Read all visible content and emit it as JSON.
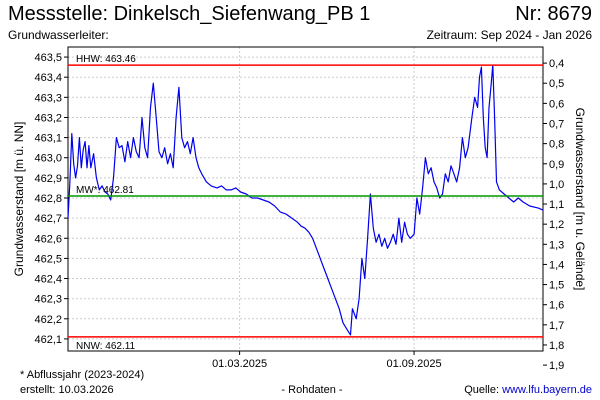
{
  "header": {
    "title": "Messstelle: Dinkelsch_Siefenwang_PB 1",
    "station_number": "Nr: 8679",
    "aquifer_label": "Grundwasserleiter:",
    "period": "Zeitraum: Sep 2024 - Jan 2026"
  },
  "footer": {
    "footnote": "* Abflussjahr (2023-2024)",
    "created": "erstellt:  10.03.2026",
    "rawdata": "- Rohdaten -",
    "source_prefix": "Quelle:",
    "source_link": "www.lfu.bayern.de"
  },
  "chart_data": {
    "type": "line",
    "ylabel": "Grundwasserstand [m ü. NN]",
    "ylabel_right": "Grundwasserstand [m u. Gelände]",
    "xlim": [
      "2024-09-01",
      "2026-01-15"
    ],
    "ylim": [
      462.04,
      463.55
    ],
    "y_ticks": [
      462.1,
      462.2,
      462.3,
      462.4,
      462.5,
      462.6,
      462.7,
      462.8,
      462.9,
      463.0,
      463.1,
      463.2,
      463.3,
      463.4,
      463.5
    ],
    "y_tick_labels": [
      "462,1",
      "462,2",
      "462,3",
      "462,4",
      "462,5",
      "462,6",
      "462,7",
      "462,8",
      "462,9",
      "463,0",
      "463,1",
      "463,2",
      "463,3",
      "463,4",
      "463,5"
    ],
    "right_ticks": [
      0.4,
      0.5,
      0.6,
      0.7,
      0.8,
      0.9,
      1.0,
      1.1,
      1.2,
      1.3,
      1.4,
      1.5,
      1.6,
      1.7,
      1.8,
      1.9
    ],
    "right_tick_labels": [
      "0,4",
      "0,5",
      "0,6",
      "0,7",
      "0,8",
      "0,9",
      "1,0",
      "1,1",
      "1,2",
      "1,3",
      "1,4",
      "1,5",
      "1,6",
      "1,7",
      "1,8",
      "1,9"
    ],
    "right_axis_reference": 463.87,
    "x_ticks": [
      {
        "date": "2025-03-01",
        "label": "01.03.2025"
      },
      {
        "date": "2025-09-01",
        "label": "01.09.2025"
      }
    ],
    "grid": true,
    "reference_lines": [
      {
        "label": "HHW: 463.46",
        "value": 463.46,
        "color": "#ff0000"
      },
      {
        "label": "MW*: 462.81",
        "value": 462.81,
        "color": "#009900"
      },
      {
        "label": "NNW: 462.11",
        "value": 462.11,
        "color": "#ff0000"
      }
    ],
    "series": [
      {
        "color": "#0000ee",
        "points": [
          [
            "2024-09-01",
            462.7
          ],
          [
            "2024-09-03",
            462.88
          ],
          [
            "2024-09-05",
            463.12
          ],
          [
            "2024-09-07",
            462.97
          ],
          [
            "2024-09-09",
            462.9
          ],
          [
            "2024-09-11",
            462.96
          ],
          [
            "2024-09-13",
            463.1
          ],
          [
            "2024-09-15",
            462.95
          ],
          [
            "2024-09-17",
            463.04
          ],
          [
            "2024-09-19",
            463.08
          ],
          [
            "2024-09-21",
            462.95
          ],
          [
            "2024-09-23",
            463.06
          ],
          [
            "2024-09-25",
            462.95
          ],
          [
            "2024-09-28",
            463.02
          ],
          [
            "2024-10-01",
            462.9
          ],
          [
            "2024-10-04",
            462.84
          ],
          [
            "2024-10-07",
            462.86
          ],
          [
            "2024-10-10",
            462.83
          ],
          [
            "2024-10-13",
            462.82
          ],
          [
            "2024-10-16",
            462.79
          ],
          [
            "2024-10-19",
            462.9
          ],
          [
            "2024-10-22",
            463.1
          ],
          [
            "2024-10-25",
            463.05
          ],
          [
            "2024-10-28",
            463.06
          ],
          [
            "2024-10-31",
            462.98
          ],
          [
            "2024-11-03",
            463.08
          ],
          [
            "2024-11-06",
            463.0
          ],
          [
            "2024-11-09",
            463.1
          ],
          [
            "2024-11-12",
            463.03
          ],
          [
            "2024-11-15",
            463.0
          ],
          [
            "2024-11-18",
            463.2
          ],
          [
            "2024-11-21",
            463.05
          ],
          [
            "2024-11-24",
            463.0
          ],
          [
            "2024-11-27",
            463.25
          ],
          [
            "2024-11-30",
            463.37
          ],
          [
            "2024-12-03",
            463.2
          ],
          [
            "2024-12-06",
            463.03
          ],
          [
            "2024-12-09",
            463.0
          ],
          [
            "2024-12-12",
            463.05
          ],
          [
            "2024-12-15",
            462.97
          ],
          [
            "2024-12-18",
            463.02
          ],
          [
            "2024-12-21",
            462.95
          ],
          [
            "2024-12-24",
            463.2
          ],
          [
            "2024-12-27",
            463.35
          ],
          [
            "2024-12-30",
            463.1
          ],
          [
            "2025-01-02",
            463.05
          ],
          [
            "2025-01-05",
            463.08
          ],
          [
            "2025-01-08",
            463.02
          ],
          [
            "2025-01-11",
            463.1
          ],
          [
            "2025-01-14",
            463.0
          ],
          [
            "2025-01-17",
            462.95
          ],
          [
            "2025-01-20",
            462.92
          ],
          [
            "2025-01-25",
            462.88
          ],
          [
            "2025-01-30",
            462.86
          ],
          [
            "2025-02-05",
            462.85
          ],
          [
            "2025-02-10",
            462.86
          ],
          [
            "2025-02-15",
            462.84
          ],
          [
            "2025-02-20",
            462.84
          ],
          [
            "2025-02-25",
            462.85
          ],
          [
            "2025-03-02",
            462.83
          ],
          [
            "2025-03-08",
            462.82
          ],
          [
            "2025-03-14",
            462.8
          ],
          [
            "2025-03-20",
            462.8
          ],
          [
            "2025-03-26",
            462.79
          ],
          [
            "2025-04-01",
            462.78
          ],
          [
            "2025-04-07",
            462.76
          ],
          [
            "2025-04-13",
            462.73
          ],
          [
            "2025-04-19",
            462.72
          ],
          [
            "2025-04-25",
            462.7
          ],
          [
            "2025-05-01",
            462.68
          ],
          [
            "2025-05-05",
            462.66
          ],
          [
            "2025-05-09",
            462.65
          ],
          [
            "2025-05-13",
            462.63
          ],
          [
            "2025-05-17",
            462.6
          ],
          [
            "2025-05-21",
            462.55
          ],
          [
            "2025-05-25",
            462.5
          ],
          [
            "2025-05-29",
            462.45
          ],
          [
            "2025-06-02",
            462.4
          ],
          [
            "2025-06-06",
            462.35
          ],
          [
            "2025-06-10",
            462.3
          ],
          [
            "2025-06-14",
            462.25
          ],
          [
            "2025-06-18",
            462.18
          ],
          [
            "2025-06-22",
            462.15
          ],
          [
            "2025-06-26",
            462.12
          ],
          [
            "2025-06-28",
            462.25
          ],
          [
            "2025-07-02",
            462.2
          ],
          [
            "2025-07-05",
            462.3
          ],
          [
            "2025-07-08",
            462.5
          ],
          [
            "2025-07-11",
            462.4
          ],
          [
            "2025-07-14",
            462.6
          ],
          [
            "2025-07-17",
            462.82
          ],
          [
            "2025-07-20",
            462.65
          ],
          [
            "2025-07-23",
            462.58
          ],
          [
            "2025-07-26",
            462.62
          ],
          [
            "2025-07-29",
            462.56
          ],
          [
            "2025-08-01",
            462.6
          ],
          [
            "2025-08-04",
            462.55
          ],
          [
            "2025-08-07",
            462.58
          ],
          [
            "2025-08-10",
            462.62
          ],
          [
            "2025-08-13",
            462.57
          ],
          [
            "2025-08-16",
            462.7
          ],
          [
            "2025-08-19",
            462.58
          ],
          [
            "2025-08-22",
            462.68
          ],
          [
            "2025-08-25",
            462.62
          ],
          [
            "2025-08-28",
            462.6
          ],
          [
            "2025-09-01",
            462.62
          ],
          [
            "2025-09-04",
            462.8
          ],
          [
            "2025-09-07",
            462.72
          ],
          [
            "2025-09-10",
            462.85
          ],
          [
            "2025-09-13",
            463.0
          ],
          [
            "2025-09-16",
            462.92
          ],
          [
            "2025-09-19",
            462.95
          ],
          [
            "2025-09-22",
            462.88
          ],
          [
            "2025-09-25",
            462.85
          ],
          [
            "2025-09-28",
            462.8
          ],
          [
            "2025-10-01",
            462.82
          ],
          [
            "2025-10-04",
            462.92
          ],
          [
            "2025-10-07",
            462.88
          ],
          [
            "2025-10-10",
            462.96
          ],
          [
            "2025-10-13",
            462.92
          ],
          [
            "2025-10-16",
            462.88
          ],
          [
            "2025-10-19",
            462.95
          ],
          [
            "2025-10-22",
            463.1
          ],
          [
            "2025-10-25",
            463.0
          ],
          [
            "2025-10-28",
            463.05
          ],
          [
            "2025-11-01",
            463.2
          ],
          [
            "2025-11-04",
            463.3
          ],
          [
            "2025-11-07",
            463.25
          ],
          [
            "2025-11-09",
            463.4
          ],
          [
            "2025-11-11",
            463.45
          ],
          [
            "2025-11-13",
            463.2
          ],
          [
            "2025-11-15",
            463.05
          ],
          [
            "2025-11-17",
            463.0
          ],
          [
            "2025-11-19",
            463.25
          ],
          [
            "2025-11-21",
            463.35
          ],
          [
            "2025-11-23",
            463.46
          ],
          [
            "2025-11-25",
            463.2
          ],
          [
            "2025-11-27",
            462.88
          ],
          [
            "2025-11-30",
            462.84
          ],
          [
            "2025-12-05",
            462.82
          ],
          [
            "2025-12-10",
            462.8
          ],
          [
            "2025-12-15",
            462.78
          ],
          [
            "2025-12-20",
            462.8
          ],
          [
            "2025-12-25",
            462.78
          ],
          [
            "2026-01-01",
            462.76
          ],
          [
            "2026-01-10",
            462.75
          ],
          [
            "2026-01-15",
            462.74
          ]
        ]
      }
    ]
  }
}
